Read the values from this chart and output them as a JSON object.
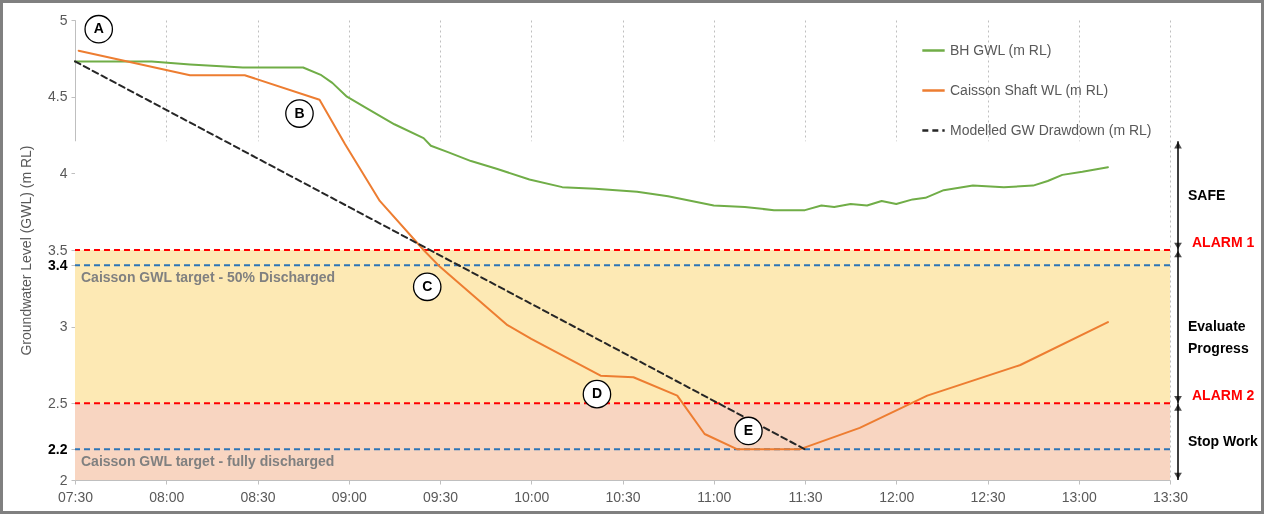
{
  "chart_data": {
    "type": "line",
    "ylabel": "Groundwater Level (GWL) (m RL)",
    "xlim": [
      7.5,
      13.5
    ],
    "ylim": [
      2,
      5
    ],
    "xticks": [
      {
        "value": 7.5,
        "label": "07:30"
      },
      {
        "value": 8,
        "label": "08:00"
      },
      {
        "value": 8.5,
        "label": "08:30"
      },
      {
        "value": 9,
        "label": "09:00"
      },
      {
        "value": 9.5,
        "label": "09:30"
      },
      {
        "value": 10,
        "label": "10:00"
      },
      {
        "value": 10.5,
        "label": "10:30"
      },
      {
        "value": 11,
        "label": "11:00"
      },
      {
        "value": 11.5,
        "label": "11:30"
      },
      {
        "value": 12,
        "label": "12:00"
      },
      {
        "value": 12.5,
        "label": "12:30"
      },
      {
        "value": 13,
        "label": "13:00"
      },
      {
        "value": 13.5,
        "label": "13:30"
      }
    ],
    "yticks": [
      2,
      2.2,
      2.5,
      3,
      3.4,
      3.5,
      4,
      4.5,
      5
    ],
    "grid": "x",
    "legend": "top right",
    "series": [
      {
        "name": "BH GWL (m RL)",
        "color": "#70ad47",
        "x": [
          7.5,
          7.92,
          8.13,
          8.42,
          8.75,
          8.85,
          8.91,
          8.99,
          9.09,
          9.25,
          9.41,
          9.45,
          9.54,
          9.67,
          9.81,
          9.99,
          10.17,
          10.35,
          10.58,
          10.75,
          11.0,
          11.17,
          11.33,
          11.5,
          11.59,
          11.66,
          11.75,
          11.84,
          11.92,
          12.0,
          12.09,
          12.16,
          12.26,
          12.42,
          12.59,
          12.75,
          12.83,
          12.91,
          13.02,
          13.16
        ],
        "values": [
          4.73,
          4.73,
          4.71,
          4.69,
          4.69,
          4.64,
          4.59,
          4.5,
          4.43,
          4.32,
          4.23,
          4.18,
          4.14,
          4.08,
          4.03,
          3.96,
          3.91,
          3.9,
          3.88,
          3.85,
          3.79,
          3.78,
          3.76,
          3.76,
          3.79,
          3.78,
          3.8,
          3.79,
          3.82,
          3.8,
          3.83,
          3.84,
          3.89,
          3.92,
          3.91,
          3.92,
          3.95,
          3.99,
          4.01,
          4.04
        ]
      },
      {
        "name": "Caisson Shaft WL (m RL)",
        "color": "#ed7d31",
        "x": [
          7.52,
          8.13,
          8.43,
          8.84,
          8.98,
          9.17,
          9.41,
          9.5,
          9.87,
          10.0,
          10.38,
          10.56,
          10.8,
          10.95,
          11.13,
          11.47,
          11.8,
          12.17,
          12.68,
          13.16
        ],
        "values": [
          4.8,
          4.64,
          4.64,
          4.48,
          4.19,
          3.82,
          3.5,
          3.39,
          3.01,
          2.92,
          2.68,
          2.67,
          2.55,
          2.3,
          2.2,
          2.2,
          2.34,
          2.55,
          2.75,
          3.03
        ]
      },
      {
        "name": "Modelled GW Drawdown (m RL)",
        "color": "#262626",
        "line_style": "dashed",
        "x": [
          7.5,
          11.5
        ],
        "values": [
          4.73,
          2.2
        ]
      }
    ],
    "ref_lines": [
      {
        "axis": "y",
        "value": 3.5,
        "label": "ALARM 1",
        "color": "#ff0000",
        "line_style": "dashed"
      },
      {
        "axis": "y",
        "value": 3.4,
        "label": "Caisson GWL target - 50% Discharged",
        "color": "#2e75b6",
        "line_style": "dashed"
      },
      {
        "axis": "y",
        "value": 2.5,
        "label": "ALARM 2",
        "color": "#ff0000",
        "line_style": "dashed"
      },
      {
        "axis": "y",
        "value": 2.2,
        "label": "Caisson GWL target - fully discharged",
        "color": "#2e75b6",
        "line_style": "dashed"
      }
    ],
    "bands": [
      {
        "axis": "y",
        "from": 3.5,
        "to": 4.21,
        "label": "SAFE",
        "color": "#ffffff"
      },
      {
        "axis": "y",
        "from": 2.5,
        "to": 3.5,
        "label": "Evaluate Progress",
        "color": "#fde9b4"
      },
      {
        "axis": "y",
        "from": 2,
        "to": 2.5,
        "label": "Stop Work",
        "color": "#f8d5c1"
      }
    ],
    "annotations": [
      {
        "text": "A",
        "x": 7.63,
        "y": 4.94
      },
      {
        "text": "B",
        "x": 8.73,
        "y": 4.39
      },
      {
        "text": "C",
        "x": 9.43,
        "y": 3.26
      },
      {
        "text": "D",
        "x": 10.36,
        "y": 2.56
      },
      {
        "text": "E",
        "x": 11.19,
        "y": 2.32
      }
    ]
  }
}
